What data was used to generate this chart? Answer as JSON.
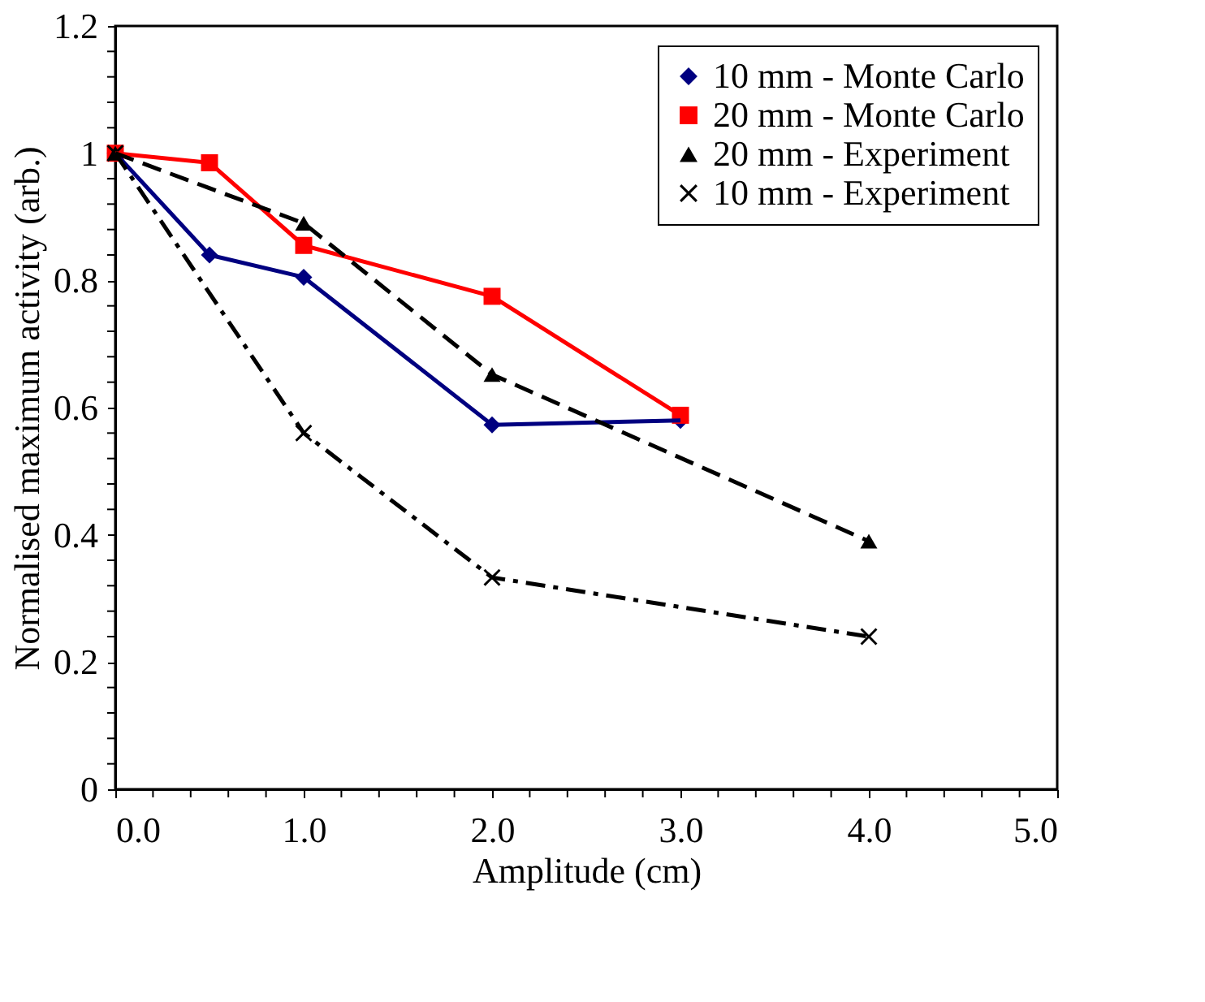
{
  "chart_data": {
    "type": "line",
    "xlabel": "Amplitude (cm)",
    "ylabel": "Normalised maximum activity (arb.)",
    "legend": "top right",
    "grid": false,
    "xlim": [
      0,
      5
    ],
    "ylim": [
      0,
      1.2
    ],
    "xticks": [
      {
        "value": 0,
        "label": "0.0"
      },
      {
        "value": 0.2,
        "label": null
      },
      {
        "value": 0.4,
        "label": null
      },
      {
        "value": 0.6,
        "label": null
      },
      {
        "value": 0.8,
        "label": null
      },
      {
        "value": 1,
        "label": "1.0"
      },
      {
        "value": 1.2,
        "label": null
      },
      {
        "value": 1.4,
        "label": null
      },
      {
        "value": 1.6,
        "label": null
      },
      {
        "value": 1.8,
        "label": null
      },
      {
        "value": 2,
        "label": "2.0"
      },
      {
        "value": 2.2,
        "label": null
      },
      {
        "value": 2.4,
        "label": null
      },
      {
        "value": 2.6,
        "label": null
      },
      {
        "value": 2.8,
        "label": null
      },
      {
        "value": 3,
        "label": "3.0"
      },
      {
        "value": 3.2,
        "label": null
      },
      {
        "value": 3.4,
        "label": null
      },
      {
        "value": 3.6,
        "label": null
      },
      {
        "value": 3.8,
        "label": null
      },
      {
        "value": 4,
        "label": "4.0"
      },
      {
        "value": 4.2,
        "label": null
      },
      {
        "value": 4.4,
        "label": null
      },
      {
        "value": 4.6,
        "label": null
      },
      {
        "value": 4.8,
        "label": null
      },
      {
        "value": 5,
        "label": "5.0"
      }
    ],
    "yticks": [
      0,
      {
        "value": 0.04,
        "label": null
      },
      {
        "value": 0.08,
        "label": null
      },
      {
        "value": 0.12,
        "label": null
      },
      {
        "value": 0.16,
        "label": null
      },
      0.2,
      {
        "value": 0.24,
        "label": null
      },
      {
        "value": 0.28,
        "label": null
      },
      {
        "value": 0.32,
        "label": null
      },
      {
        "value": 0.36,
        "label": null
      },
      0.4,
      {
        "value": 0.44,
        "label": null
      },
      {
        "value": 0.48,
        "label": null
      },
      {
        "value": 0.52,
        "label": null
      },
      {
        "value": 0.56,
        "label": null
      },
      0.6,
      {
        "value": 0.64,
        "label": null
      },
      {
        "value": 0.68,
        "label": null
      },
      {
        "value": 0.72,
        "label": null
      },
      {
        "value": 0.76,
        "label": null
      },
      0.8,
      {
        "value": 0.84,
        "label": null
      },
      {
        "value": 0.88,
        "label": null
      },
      {
        "value": 0.92,
        "label": null
      },
      {
        "value": 0.96,
        "label": null
      },
      1,
      {
        "value": 1.04,
        "label": null
      },
      {
        "value": 1.08,
        "label": null
      },
      {
        "value": 1.12,
        "label": null
      },
      {
        "value": 1.16,
        "label": null
      },
      1.2
    ],
    "series": [
      {
        "name": "10 mm - Monte Carlo",
        "color": "#000080",
        "marker": "diamond",
        "line_style": "solid",
        "x": [
          0,
          0.5,
          1,
          2,
          3
        ],
        "values": [
          1,
          0.84,
          0.805,
          0.573,
          0.58
        ]
      },
      {
        "name": "20 mm - Monte Carlo",
        "color": "#ff0000",
        "marker": "square",
        "line_style": "solid",
        "x": [
          0,
          0.5,
          1,
          2,
          3
        ],
        "values": [
          1,
          0.985,
          0.855,
          0.775,
          0.588
        ]
      },
      {
        "name": "20 mm - Experiment",
        "color": "#000000",
        "marker": "triangle",
        "line_style": "dashed",
        "x": [
          0,
          1,
          2,
          4
        ],
        "values": [
          1,
          0.89,
          0.652,
          0.39
        ]
      },
      {
        "name": "10 mm - Experiment",
        "color": "#000000",
        "marker": "cross",
        "line_style": "dashdot",
        "x": [
          0,
          1,
          2,
          4
        ],
        "values": [
          1,
          0.56,
          0.333,
          0.24
        ]
      }
    ]
  }
}
